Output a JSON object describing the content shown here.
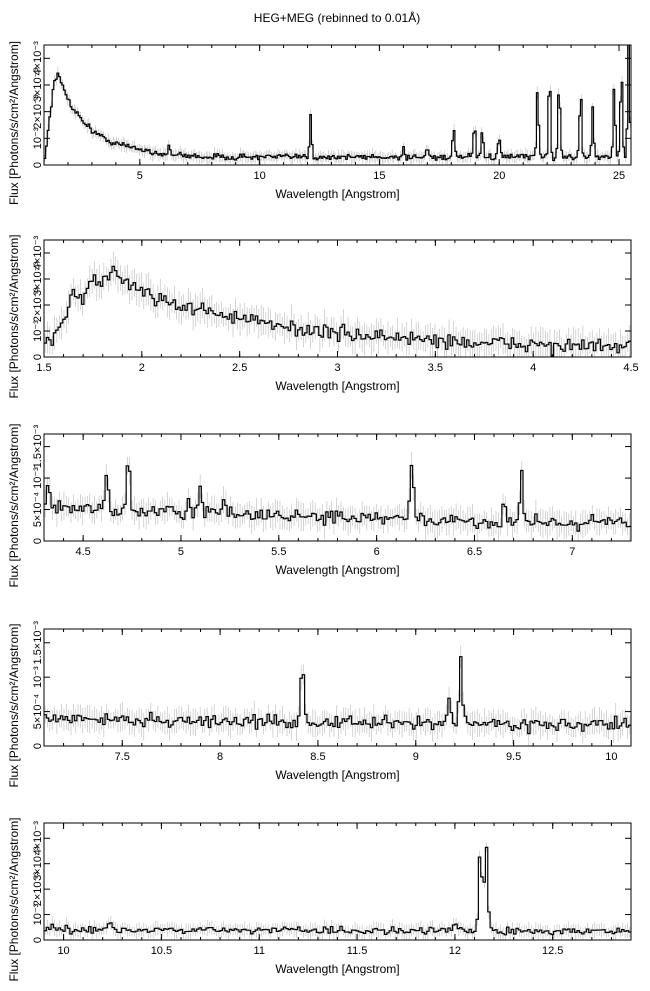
{
  "page_title": "HEG+MEG (rebinned to 0.01Å)",
  "chart_data": [
    {
      "type": "line",
      "title": "HEG+MEG (rebinned to 0.01Å)",
      "xlabel": "Wavelength [Angstrom]",
      "ylabel": "Flux [Photons/s/cm²/Angstrom]",
      "xlim": [
        1.0,
        25.5
      ],
      "ylim": [
        0,
        0.0045
      ],
      "x_ticks": [
        5,
        10,
        15,
        20,
        25
      ],
      "y_ticks": [
        0,
        0.001,
        0.002,
        0.003,
        0.004
      ],
      "y_tick_labels": [
        "0",
        "10⁻³",
        "2×10⁻³",
        "3×10⁻³",
        "4×10⁻³"
      ],
      "grid": false,
      "series": [
        {
          "x": [
            1.0,
            1.2,
            1.4,
            1.6,
            1.8,
            2.0,
            2.3,
            2.6,
            3.0,
            3.5,
            4.0,
            5.0,
            6.0,
            7.0,
            8.0,
            9.0,
            10.0,
            12.0,
            14.0,
            16.0,
            17.0,
            18.0,
            19.0,
            20.0,
            21.0,
            22.0,
            23.0,
            24.0,
            25.0,
            25.5
          ],
          "y": [
            0.0,
            0.0015,
            0.003,
            0.0034,
            0.0029,
            0.0025,
            0.002,
            0.0017,
            0.0013,
            0.001,
            0.0008,
            0.0006,
            0.0004,
            0.00035,
            0.0003,
            0.0003,
            0.0003,
            0.0003,
            0.0003,
            0.0003,
            0.0003,
            0.0003,
            0.0003,
            0.0003,
            0.0003,
            0.0003,
            0.0003,
            0.0003,
            0.0003,
            0.0003
          ],
          "error": 0.0002,
          "lines": [
            [
              6.2,
              0.0007
            ],
            [
              12.13,
              0.0019
            ],
            [
              16.0,
              0.0006
            ],
            [
              17.0,
              0.0007
            ],
            [
              18.1,
              0.0013
            ],
            [
              18.97,
              0.0015
            ],
            [
              19.3,
              0.0012
            ],
            [
              20.0,
              0.0011
            ],
            [
              21.6,
              0.0028
            ],
            [
              22.1,
              0.0035
            ],
            [
              22.5,
              0.0032
            ],
            [
              23.4,
              0.0029
            ],
            [
              23.9,
              0.0022
            ],
            [
              24.8,
              0.003
            ],
            [
              25.1,
              0.0036
            ],
            [
              25.4,
              0.0045
            ]
          ]
        }
      ]
    },
    {
      "type": "line",
      "xlabel": "Wavelength [Angstrom]",
      "ylabel": "Flux [Photons/s/cm²/Angstrom]",
      "xlim": [
        1.5,
        4.5
      ],
      "ylim": [
        0,
        0.0045
      ],
      "x_ticks": [
        1.5,
        2,
        2.5,
        3,
        3.5,
        4,
        4.5
      ],
      "y_ticks": [
        0,
        0.001,
        0.002,
        0.003,
        0.004
      ],
      "y_tick_labels": [
        "0",
        "10⁻³",
        "2×10⁻³",
        "3×10⁻³",
        "4×10⁻³"
      ],
      "grid": false,
      "series": [
        {
          "x": [
            1.5,
            1.55,
            1.6,
            1.65,
            1.7,
            1.75,
            1.8,
            1.85,
            1.9,
            1.95,
            2.0,
            2.1,
            2.2,
            2.3,
            2.4,
            2.5,
            2.6,
            2.8,
            3.0,
            3.2,
            3.4,
            3.6,
            3.8,
            4.0,
            4.2,
            4.5
          ],
          "y": [
            0.0003,
            0.0007,
            0.0015,
            0.0025,
            0.0023,
            0.003,
            0.0028,
            0.0034,
            0.003,
            0.0027,
            0.0026,
            0.0022,
            0.002,
            0.0018,
            0.0017,
            0.0015,
            0.0013,
            0.0011,
            0.0009,
            0.0008,
            0.0007,
            0.0006,
            0.0005,
            0.0005,
            0.0004,
            0.0004
          ],
          "error": 0.0005,
          "lines": []
        }
      ]
    },
    {
      "type": "line",
      "xlabel": "Wavelength [Angstrom]",
      "ylabel": "Flux [Photons/s/cm²/Angstrom]",
      "xlim": [
        4.3,
        7.3
      ],
      "ylim": [
        0,
        0.0017
      ],
      "x_ticks": [
        4.5,
        5,
        5.5,
        6,
        6.5,
        7
      ],
      "y_ticks": [
        0,
        0.0005,
        0.001,
        0.0015
      ],
      "y_tick_labels": [
        "0",
        "5×10⁻⁴",
        "10⁻³",
        "1.5×10⁻³"
      ],
      "grid": false,
      "series": [
        {
          "x": [
            4.3,
            4.5,
            5.0,
            5.5,
            6.0,
            6.5,
            7.0,
            7.3
          ],
          "y": [
            0.0005,
            0.0005,
            0.00045,
            0.0004,
            0.00035,
            0.0003,
            0.0003,
            0.0003
          ],
          "error": 0.00018,
          "lines": [
            [
              4.32,
              0.0009
            ],
            [
              4.62,
              0.0011
            ],
            [
              4.73,
              0.0013
            ],
            [
              5.04,
              0.0007
            ],
            [
              5.1,
              0.0008
            ],
            [
              5.22,
              0.0007
            ],
            [
              6.18,
              0.0013
            ],
            [
              6.65,
              0.0006
            ],
            [
              6.74,
              0.0011
            ]
          ]
        }
      ]
    },
    {
      "type": "line",
      "xlabel": "Wavelength [Angstrom]",
      "ylabel": "Flux [Photons/s/cm²/Angstrom]",
      "xlim": [
        7.1,
        10.1
      ],
      "ylim": [
        0,
        0.0017
      ],
      "x_ticks": [
        7.5,
        8,
        8.5,
        9,
        9.5,
        10
      ],
      "y_ticks": [
        0,
        0.0005,
        0.001,
        0.0015
      ],
      "y_tick_labels": [
        "0",
        "5×10⁻⁴",
        "10⁻³",
        "1.5×10⁻³"
      ],
      "grid": false,
      "series": [
        {
          "x": [
            7.1,
            7.5,
            8.0,
            8.5,
            9.0,
            9.5,
            10.1
          ],
          "y": [
            0.0004,
            0.00038,
            0.00036,
            0.00034,
            0.00033,
            0.00032,
            0.0003
          ],
          "error": 0.00016,
          "lines": [
            [
              8.42,
              0.0012
            ],
            [
              9.17,
              0.0007
            ],
            [
              9.23,
              0.0013
            ]
          ]
        }
      ]
    },
    {
      "type": "line",
      "xlabel": "Wavelength [Angstrom]",
      "ylabel": "Flux [Photons/s/cm²/Angstrom]",
      "xlim": [
        9.9,
        12.9
      ],
      "ylim": [
        0,
        0.0046
      ],
      "x_ticks": [
        10,
        10.5,
        11,
        11.5,
        12,
        12.5
      ],
      "y_ticks": [
        0,
        0.001,
        0.002,
        0.003,
        0.004
      ],
      "y_tick_labels": [
        "0",
        "10⁻³",
        "2×10⁻³",
        "3×10⁻³",
        "4×10⁻³"
      ],
      "grid": false,
      "series": [
        {
          "x": [
            9.9,
            10.5,
            11.0,
            11.5,
            12.0,
            12.5,
            12.9
          ],
          "y": [
            0.0004,
            0.0004,
            0.0004,
            0.00038,
            0.00036,
            0.00035,
            0.00034
          ],
          "error": 0.00025,
          "lines": [
            [
              10.24,
              0.0008
            ],
            [
              12.0,
              0.0007
            ],
            [
              12.13,
              0.0036
            ],
            [
              12.16,
              0.0037
            ]
          ]
        }
      ]
    }
  ]
}
